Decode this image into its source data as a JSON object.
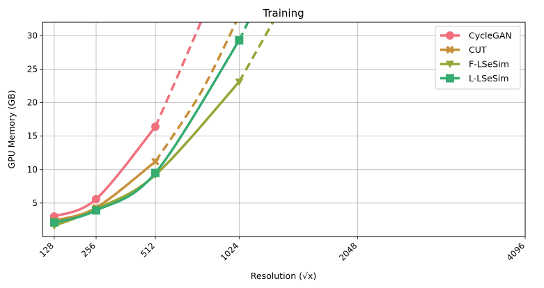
{
  "chart_data": {
    "type": "line",
    "title": "Training",
    "xlabel": "Resolution (√x)",
    "ylabel": "GPU Memory (GB)",
    "xscale": "sqrt",
    "xlim": [
      100,
      4096
    ],
    "ylim": [
      0,
      32
    ],
    "xticks": [
      128,
      256,
      512,
      1024,
      2048,
      4096
    ],
    "yticks": [
      5,
      10,
      15,
      20,
      25,
      30
    ],
    "grid": true,
    "legend": "top-right",
    "series": [
      {
        "name": "CycleGAN",
        "color": "#f0707d",
        "marker": "circle",
        "points": [
          [
            128,
            3.0
          ],
          [
            256,
            5.6
          ],
          [
            512,
            16.4
          ]
        ],
        "extrapolated": [
          [
            512,
            16.4
          ],
          [
            640,
            24.5
          ],
          [
            768,
            32.0
          ]
        ]
      },
      {
        "name": "CUT",
        "color": "#c9903a",
        "marker": "x",
        "points": [
          [
            128,
            2.4
          ],
          [
            256,
            4.3
          ],
          [
            512,
            11.2
          ]
        ],
        "extrapolated": [
          [
            512,
            11.2
          ],
          [
            768,
            21.5
          ],
          [
            1024,
            33.0
          ]
        ]
      },
      {
        "name": "F-LSeSim",
        "color": "#96a536",
        "marker": "triangle-down",
        "points": [
          [
            128,
            1.6
          ],
          [
            256,
            4.1
          ],
          [
            512,
            9.2
          ],
          [
            1024,
            23.1
          ]
        ],
        "extrapolated": [
          [
            1024,
            23.1
          ],
          [
            1280,
            32.0
          ]
        ]
      },
      {
        "name": "L-LSeSim",
        "color": "#35ab70",
        "marker": "square",
        "points": [
          [
            128,
            2.1
          ],
          [
            256,
            3.9
          ],
          [
            512,
            9.5
          ],
          [
            1024,
            29.3
          ]
        ],
        "extrapolated": [
          [
            1024,
            29.3
          ],
          [
            1088,
            32.0
          ]
        ]
      }
    ]
  }
}
